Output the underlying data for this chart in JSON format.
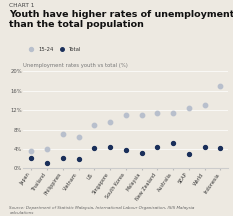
{
  "title_small": "CHART 1",
  "title": "Youth have higher rates of unemployment\nthan the total population",
  "subtitle": "Unemployment rates youth vs total (%)",
  "categories": [
    "Japan",
    "Thailand",
    "Philippines",
    "Vietnam",
    "US",
    "Singapore",
    "South Korea",
    "Malaysia",
    "New Zealand",
    "Australia",
    "SEAP",
    "World",
    "Indonesia"
  ],
  "youth_15_24": [
    3.5,
    4.0,
    7.0,
    6.5,
    9.0,
    9.5,
    11.0,
    11.0,
    11.5,
    11.5,
    12.5,
    13.0,
    17.0
  ],
  "total": [
    2.2,
    1.2,
    2.2,
    2.0,
    4.2,
    4.5,
    3.8,
    3.1,
    4.5,
    5.2,
    3.0,
    4.5,
    4.2
  ],
  "youth_color": "#b8bfcc",
  "total_color": "#1a2f5a",
  "bg_color": "#ede9e1",
  "ylim": [
    0,
    20
  ],
  "yticks": [
    0,
    4,
    8,
    12,
    16,
    20
  ],
  "ytick_labels": [
    "0%",
    "4%",
    "8%",
    "12%",
    "16%",
    "20%"
  ],
  "source": "Source: Department of Statistic Malaysia, International Labour Organisation, ISIS Malaysia\ncalculations"
}
